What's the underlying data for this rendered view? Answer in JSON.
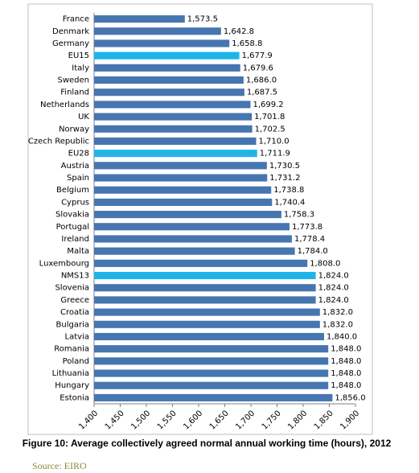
{
  "chart_data": {
    "type": "hbar",
    "caption": "Figure 10: Average collectively agreed normal annual working time (hours), 2012",
    "source": "Source: EIRO",
    "categories": [
      "France",
      "Denmark",
      "Germany",
      "EU15",
      "Italy",
      "Sweden",
      "Finland",
      "Netherlands",
      "UK",
      "Norway",
      "Czech Republic",
      "EU28",
      "Austria",
      "Spain",
      "Belgium",
      "Cyprus",
      "Slovakia",
      "Portugal",
      "Ireland",
      "Malta",
      "Luxembourg",
      "NMS13",
      "Slovenia",
      "Greece",
      "Croatia",
      "Bulgaria",
      "Latvia",
      "Romania",
      "Poland",
      "Lithuania",
      "Hungary",
      "Estonia"
    ],
    "values": [
      1573.5,
      1642.8,
      1658.8,
      1677.9,
      1679.6,
      1686.0,
      1687.5,
      1699.2,
      1701.8,
      1702.5,
      1710.0,
      1711.9,
      1730.5,
      1731.2,
      1738.8,
      1740.4,
      1758.3,
      1773.8,
      1778.4,
      1784.0,
      1808.0,
      1824.0,
      1824.0,
      1824.0,
      1832.0,
      1832.0,
      1840.0,
      1848.0,
      1848.0,
      1848.0,
      1848.0,
      1856.0
    ],
    "value_labels": [
      "1,573.5",
      "1,642.8",
      "1,658.8",
      "1,677.9",
      "1,679.6",
      "1,686.0",
      "1,687.5",
      "1,699.2",
      "1,701.8",
      "1,702.5",
      "1,710.0",
      "1,711.9",
      "1,730.5",
      "1,731.2",
      "1,738.8",
      "1,740.4",
      "1,758.3",
      "1,773.8",
      "1,778.4",
      "1,784.0",
      "1,808.0",
      "1,824.0",
      "1,824.0",
      "1,824.0",
      "1,832.0",
      "1,832.0",
      "1,840.0",
      "1,848.0",
      "1,848.0",
      "1,848.0",
      "1,848.0",
      "1,856.0"
    ],
    "colors": [
      "#4676b0",
      "#4676b0",
      "#4676b0",
      "#1fb4e8",
      "#4676b0",
      "#4676b0",
      "#4676b0",
      "#4676b0",
      "#4676b0",
      "#4676b0",
      "#4676b0",
      "#1fb4e8",
      "#4676b0",
      "#4676b0",
      "#4676b0",
      "#4676b0",
      "#4676b0",
      "#4676b0",
      "#4676b0",
      "#4676b0",
      "#4676b0",
      "#1fb4e8",
      "#4676b0",
      "#4676b0",
      "#4676b0",
      "#4676b0",
      "#4676b0",
      "#4676b0",
      "#4676b0",
      "#4676b0",
      "#4676b0",
      "#4676b0"
    ],
    "xlim": [
      1400,
      1900
    ],
    "xticks": [
      {
        "value": 1400,
        "label": "1,400"
      },
      {
        "value": 1450,
        "label": "1,450"
      },
      {
        "value": 1500,
        "label": "1,500"
      },
      {
        "value": 1550,
        "label": "1,550"
      },
      {
        "value": 1600,
        "label": "1,600"
      },
      {
        "value": 1650,
        "label": "1,650"
      },
      {
        "value": 1700,
        "label": "1,700"
      },
      {
        "value": 1750,
        "label": "1,750"
      },
      {
        "value": 1800,
        "label": "1,800"
      },
      {
        "value": 1850,
        "label": "1,850"
      },
      {
        "value": 1900,
        "label": "1,900"
      }
    ]
  }
}
